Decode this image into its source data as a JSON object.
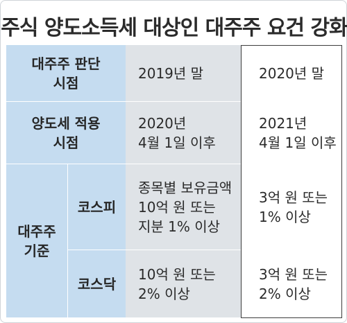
{
  "title": "주식 양도소득세 대상인 대주주 요건 강화",
  "rows": {
    "judgment": {
      "label": "대주주 판단\n시점",
      "before": "2019년 말",
      "after": "2020년 말"
    },
    "apply": {
      "label": "양도세 적용\n시점",
      "before": "2020년\n4월 1일 이후",
      "after": "2021년\n4월 1일 이후"
    },
    "criteria": {
      "label": "대주주\n기준",
      "kospi": {
        "label": "코스피",
        "before": "종목별 보유금액\n10억 원 또는\n지분 1% 이상",
        "after": "3억 원 또는\n1% 이상"
      },
      "kosdaq": {
        "label": "코스닥",
        "before": "10억 원 또는\n2% 이상",
        "after": "3억 원 또는\n2% 이상"
      }
    }
  }
}
